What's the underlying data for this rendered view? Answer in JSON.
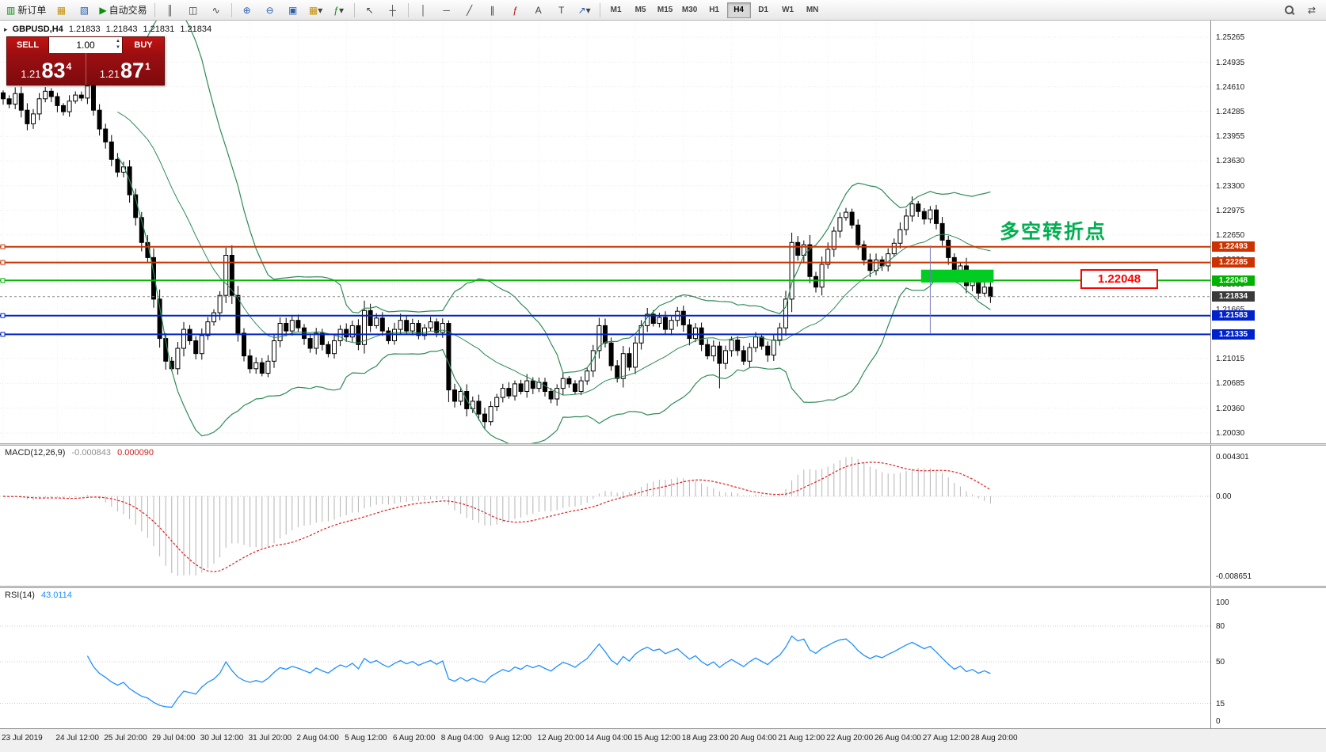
{
  "toolbar": {
    "new_order_label": "新订单",
    "autotrade_label": "自动交易",
    "timeframes": [
      "M1",
      "M5",
      "M15",
      "M30",
      "H1",
      "H4",
      "D1",
      "W1",
      "MN"
    ],
    "active_timeframe": "H4",
    "icons": {
      "new_order": "▥",
      "charts": "▦",
      "profiles": "▧",
      "autotrade_play": "▶",
      "bar_chart": "║",
      "candles": "◫",
      "line_chart": "∿",
      "zoom_in": "⊕",
      "zoom_out": "⊖",
      "tile": "▣",
      "new_chart": "▦",
      "indicators": "ƒ",
      "dropdown": "▾",
      "cursor": "↖",
      "crosshair": "┼",
      "vline": "│",
      "hline": "─",
      "trendline": "╱",
      "channel": "∥",
      "fibo": "ƒ",
      "text": "A",
      "label": "T",
      "arrows": "↗",
      "arrange": "⇄"
    }
  },
  "symbol_info": {
    "title": "GBPUSD,H4",
    "open": "1.21833",
    "high": "1.21843",
    "low": "1.21831",
    "close": "1.21834"
  },
  "one_click": {
    "sell_label": "SELL",
    "buy_label": "BUY",
    "volume": "1.00",
    "sell_price": {
      "prefix": "1.21",
      "big": "83",
      "sup": "4"
    },
    "buy_price": {
      "prefix": "1.21",
      "big": "87",
      "sup": "1"
    }
  },
  "annotations": {
    "turning_point": "多空转折点",
    "callout_price": "1.22048"
  },
  "indicators": {
    "macd": {
      "label": "MACD(12,26,9)",
      "value_macd": "-0.000843",
      "value_signal": "0.000090",
      "axis": [
        "0.004301",
        "0.00",
        "-0.008651"
      ],
      "histogram_color": "#b4b4b4",
      "signal_color": "#dd2222"
    },
    "rsi": {
      "label": "RSI(14)",
      "value": "43.0114",
      "axis": [
        "100",
        "80",
        "50",
        "15",
        "0"
      ],
      "levels": [
        80,
        50,
        15
      ],
      "color": "#1e90ff"
    }
  },
  "price_axis": {
    "values": [
      "1.25265",
      "1.24935",
      "1.24610",
      "1.24285",
      "1.23955",
      "1.23630",
      "1.23300",
      "1.22975",
      "1.22650",
      "1.22320",
      "1.21995",
      "1.21665",
      "1.21340",
      "1.21015",
      "1.20685",
      "1.20360",
      "1.20030"
    ],
    "badges": [
      {
        "value": "1.22493",
        "color": "#cc3300"
      },
      {
        "value": "1.22285",
        "color": "#cc3300"
      },
      {
        "value": "1.22048",
        "color": "#00b300"
      },
      {
        "value": "1.21834",
        "color": "#3a3a3a"
      },
      {
        "value": "1.21583",
        "color": "#0022cc"
      },
      {
        "value": "1.21335",
        "color": "#0022cc"
      }
    ]
  },
  "time_axis": {
    "labels": [
      {
        "text": "23 Jul 2019",
        "bar": 0
      },
      {
        "text": "24 Jul 12:00",
        "bar": 9
      },
      {
        "text": "25 Jul 20:00",
        "bar": 17
      },
      {
        "text": "29 Jul 04:00",
        "bar": 25
      },
      {
        "text": "30 Jul 12:00",
        "bar": 33
      },
      {
        "text": "31 Jul 20:00",
        "bar": 41
      },
      {
        "text": "2 Aug 04:00",
        "bar": 49
      },
      {
        "text": "5 Aug 12:00",
        "bar": 57
      },
      {
        "text": "6 Aug 20:00",
        "bar": 65
      },
      {
        "text": "8 Aug 04:00",
        "bar": 73
      },
      {
        "text": "9 Aug 12:00",
        "bar": 81
      },
      {
        "text": "12 Aug 20:00",
        "bar": 89
      },
      {
        "text": "14 Aug 04:00",
        "bar": 97
      },
      {
        "text": "15 Aug 12:00",
        "bar": 105
      },
      {
        "text": "18 Aug 23:00",
        "bar": 113
      },
      {
        "text": "20 Aug 04:00",
        "bar": 121
      },
      {
        "text": "21 Aug 12:00",
        "bar": 129
      },
      {
        "text": "22 Aug 20:00",
        "bar": 137
      },
      {
        "text": "26 Aug 04:00",
        "bar": 145
      },
      {
        "text": "27 Aug 12:00",
        "bar": 153
      },
      {
        "text": "28 Aug 20:00",
        "bar": 161
      }
    ]
  },
  "chart_data": {
    "type": "candlestick",
    "symbol": "GBPUSD",
    "timeframe": "H4",
    "y_axis": {
      "min": 1.2003,
      "max": 1.25265
    },
    "closes": [
      1.2445,
      1.2438,
      1.2452,
      1.243,
      1.2412,
      1.2425,
      1.2445,
      1.2455,
      1.2448,
      1.2436,
      1.2428,
      1.2442,
      1.245,
      1.2446,
      1.2462,
      1.243,
      1.2405,
      1.2388,
      1.2365,
      1.2348,
      1.2355,
      1.2318,
      1.2288,
      1.2255,
      1.2235,
      1.218,
      1.2128,
      1.2098,
      1.2088,
      1.2115,
      1.214,
      1.2125,
      1.2108,
      1.2132,
      1.215,
      1.2162,
      1.2185,
      1.2238,
      1.2185,
      1.2135,
      1.2105,
      1.2088,
      1.2096,
      1.2082,
      1.2098,
      1.2125,
      1.2148,
      1.2138,
      1.2152,
      1.2142,
      1.2128,
      1.2115,
      1.2135,
      1.212,
      1.2108,
      1.2125,
      1.214,
      1.213,
      1.2145,
      1.212,
      1.2165,
      1.2145,
      1.2155,
      1.2138,
      1.2125,
      1.214,
      1.2152,
      1.2138,
      1.2148,
      1.2132,
      1.2142,
      1.215,
      1.2136,
      1.2148,
      1.206,
      1.2045,
      1.2058,
      1.2035,
      1.2045,
      1.2028,
      1.2018,
      1.2038,
      1.205,
      1.2062,
      1.2052,
      1.2068,
      1.2058,
      1.2072,
      1.2062,
      1.207,
      1.2058,
      1.2048,
      1.2062,
      1.2075,
      1.2068,
      1.2058,
      1.2072,
      1.2085,
      1.2112,
      1.2145,
      1.2122,
      1.2092,
      1.2075,
      1.2108,
      1.209,
      1.2122,
      1.2145,
      1.216,
      1.2148,
      1.2156,
      1.214,
      1.2152,
      1.2164,
      1.2146,
      1.2128,
      1.2142,
      1.212,
      1.2105,
      1.2118,
      1.2095,
      1.2112,
      1.2126,
      1.2112,
      1.2098,
      1.2116,
      1.213,
      1.2118,
      1.2106,
      1.2126,
      1.2142,
      1.218,
      1.2255,
      1.2238,
      1.2252,
      1.221,
      1.2196,
      1.2226,
      1.2246,
      1.227,
      1.2288,
      1.2295,
      1.2278,
      1.2252,
      1.2232,
      1.2218,
      1.2232,
      1.2224,
      1.224,
      1.2254,
      1.2272,
      1.229,
      1.2306,
      1.2296,
      1.2286,
      1.2298,
      1.228,
      1.2258,
      1.2235,
      1.2212,
      1.2224,
      1.2198,
      1.2206,
      1.2188,
      1.2196,
      1.21834
    ],
    "wick_overrides": {
      "14": {
        "h": 1.247
      },
      "37": {
        "h": 1.2248
      },
      "43": {
        "l": 1.2078
      },
      "74": {
        "h": 1.2152
      },
      "80": {
        "l": 1.2008
      },
      "119": {
        "l": 1.2062
      },
      "131": {
        "h": 1.2268
      },
      "151": {
        "h": 1.2316
      }
    },
    "current_price": 1.21834,
    "hlines": [
      {
        "price": 1.22493,
        "color": "#cc3300"
      },
      {
        "price": 1.22285,
        "color": "#cc3300"
      },
      {
        "price": 1.22048,
        "color": "#00b300"
      },
      {
        "price": 1.21583,
        "color": "#0022cc"
      },
      {
        "price": 1.21335,
        "color": "#0022cc"
      }
    ],
    "highlight_rect": {
      "bar_start": 153,
      "bar_end": 164,
      "price_top": 1.2219,
      "price_bottom": 1.2202,
      "color": "#00cc22"
    },
    "vline": {
      "bar": 154,
      "price_top": 1.2251,
      "price_bottom": 1.2134,
      "color": "#7777bb"
    },
    "bollinger": {
      "period": 20,
      "deviation": 2,
      "color": "#2e8b57"
    }
  }
}
